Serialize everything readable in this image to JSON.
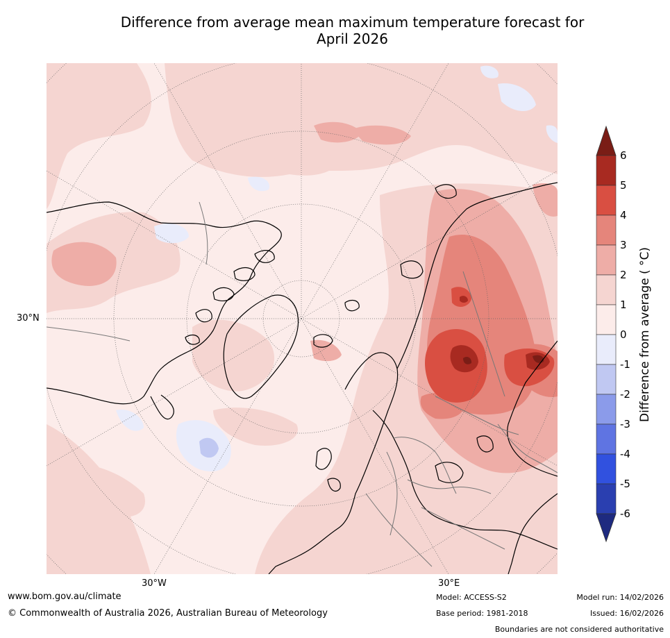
{
  "title": {
    "line1": "Difference from average mean maximum temperature forecast for",
    "line2": "April 2026"
  },
  "map": {
    "projection": "north-polar-stereographic",
    "lat_label": "30°N",
    "lon_labels": {
      "west": "30°W",
      "east": "30°E"
    }
  },
  "colorbar": {
    "title": "Difference from average ( °C)",
    "min": -6,
    "max": 6,
    "step": 1,
    "extend": "both",
    "ticks": [
      "6",
      "5",
      "4",
      "3",
      "2",
      "1",
      "0",
      "-1",
      "-2",
      "-3",
      "-4",
      "-5",
      "-6"
    ],
    "colors": {
      "above_6": "#7a1d16",
      "5_to_6": "#a82a21",
      "4_to_5": "#d94f42",
      "3_to_4": "#e5857b",
      "2_to_3": "#eeada7",
      "1_to_2": "#f5d5d1",
      "0_to_1": "#fcecea",
      "-1_to_0": "#e9ecfb",
      "-2_to_-1": "#c0c8f2",
      "-3_to_-2": "#8b9bea",
      "-4_to_-3": "#5f74e2",
      "-5_to_-4": "#3151df",
      "-6_to_-5": "#2a3fb0",
      "below_-6": "#1e2a80"
    }
  },
  "footer": {
    "url": "www.bom.gov.au/climate",
    "copyright": "© Commonwealth of Australia 2026, Australian Bureau of Meteorology",
    "model": "Model: ACCESS-S2",
    "base_period": "Base period: 1981-2018",
    "model_run": "Model run: 14/02/2026",
    "issued": "Issued: 16/02/2026",
    "disclaimer": "Boundaries are not considered authoritative"
  }
}
